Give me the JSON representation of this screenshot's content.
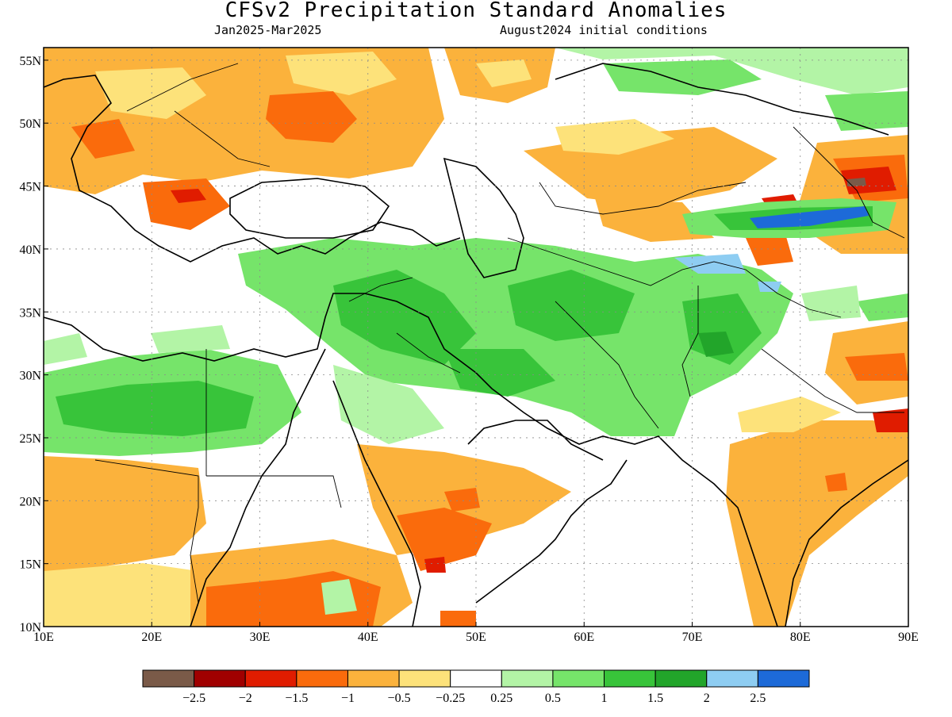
{
  "header": {
    "title": "CFSv2 Precipitation Standard Anomalies",
    "period": "Jan2025-Mar2025",
    "init": "August2024 initial conditions"
  },
  "map": {
    "lon_range": [
      10,
      90
    ],
    "lat_range": [
      10,
      56
    ],
    "x_ticks": [
      "10E",
      "20E",
      "30E",
      "40E",
      "50E",
      "60E",
      "70E",
      "80E",
      "90E"
    ],
    "y_ticks": [
      "10N",
      "15N",
      "20N",
      "25N",
      "30N",
      "35N",
      "40N",
      "45N",
      "50N",
      "55N"
    ],
    "grid": "dotted"
  },
  "colorbar": {
    "colors": [
      "#7a5a48",
      "#a00000",
      "#e01c00",
      "#fa6b0c",
      "#fbb23c",
      "#fde27a",
      "#ffffff",
      "#b3f4a6",
      "#76e46a",
      "#38c43a",
      "#22a52a",
      "#8ecdf2",
      "#1d6ad8"
    ],
    "labels": [
      "-2.5",
      "-2",
      "-1.5",
      "-1",
      "-0.5",
      "-0.25",
      "0.25",
      "0.5",
      "1",
      "1.5",
      "2",
      "2.5"
    ]
  },
  "palette": {
    "dry_strong": "#e01c00",
    "dry_mod": "#fa6b0c",
    "dry_light": "#fbb23c",
    "dry_weak": "#fde27a",
    "wet_weak": "#b3f4a6",
    "wet_light": "#76e46a",
    "wet_mod": "#38c43a",
    "wet_strong": "#22a52a",
    "wet_very": "#8ecdf2",
    "wet_extreme": "#1d6ad8",
    "brown": "#7a5a48"
  }
}
